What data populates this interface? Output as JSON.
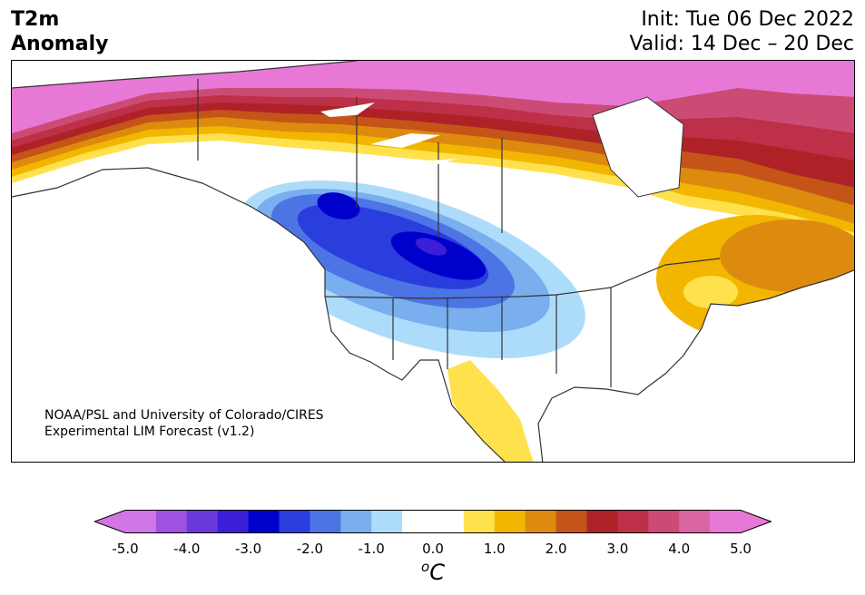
{
  "header": {
    "title_line1": "T2m",
    "title_line2": "Anomaly",
    "init": "Init: Tue 06 Dec 2022",
    "valid": "Valid: 14 Dec – 20 Dec"
  },
  "credit": {
    "line1": "NOAA/PSL and University of Colorado/CIRES",
    "line2": "Experimental LIM Forecast (v1.2)"
  },
  "colorbar": {
    "unit_base": "C",
    "unit_sup": "o",
    "ticks": [
      "-5.0",
      "-4.0",
      "-3.0",
      "-2.0",
      "-1.0",
      "0.0",
      "1.0",
      "2.0",
      "3.0",
      "4.0",
      "5.0"
    ],
    "range": [
      -5.0,
      5.0
    ],
    "step": 0.5,
    "colors": [
      "#d176e6",
      "#9f52e0",
      "#6b38da",
      "#3b1fd6",
      "#0000cc",
      "#2a3ddd",
      "#4d74e5",
      "#79aeef",
      "#acdcfa",
      "#ffffff",
      "#ffffff",
      "#ffe14d",
      "#f2b600",
      "#dd8b0e",
      "#c55418",
      "#ae2227",
      "#bd3048",
      "#cc4b75",
      "#da65a3",
      "#e878d6"
    ],
    "extend_low_color": "#d176e6",
    "extend_high_color": "#e878d6"
  },
  "map": {
    "region": "North America",
    "contours": "Filled 2 m temperature anomaly shading over North America"
  }
}
